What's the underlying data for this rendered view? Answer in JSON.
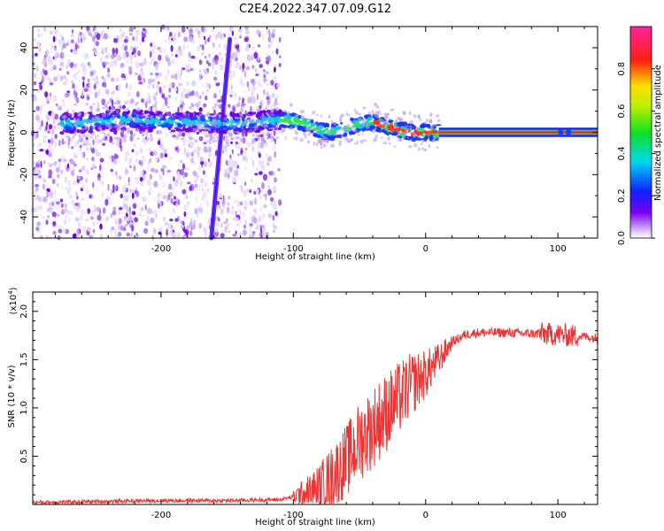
{
  "title": "C2E4.2022.347.07.09.G12",
  "chart_data": [
    {
      "type": "heatmap",
      "name": "spectrogram",
      "xlabel": "Height of straight line (km)",
      "ylabel": "Frequency (Hz)",
      "xlim": [
        -297,
        130
      ],
      "ylim": [
        -50,
        50
      ],
      "x_ticks": [
        -200,
        -100,
        0,
        100
      ],
      "x_tick_labels": [
        "-200",
        "-100",
        "0",
        "100"
      ],
      "y_ticks": [
        -40,
        -20,
        0,
        20,
        40
      ],
      "y_tick_labels": [
        "-40",
        "-20",
        "0",
        "20",
        "40"
      ],
      "colorbar": {
        "label": "Normalized spectral amplitude",
        "range": [
          0,
          1
        ],
        "ticks": [
          0.0,
          0.2,
          0.4,
          0.6,
          0.8
        ],
        "tick_labels": [
          "0.0",
          "0.2",
          "0.4",
          "0.6",
          "0.8"
        ]
      },
      "ridge": {
        "x": [
          -275,
          -250,
          -225,
          -200,
          -175,
          -150,
          -125,
          -110,
          -95,
          -80,
          -70,
          -60,
          -50,
          -40,
          -30,
          -20,
          -10,
          0,
          10,
          50,
          100,
          130
        ],
        "y": [
          4,
          5,
          6,
          5,
          5,
          4,
          5,
          6,
          5,
          1,
          0,
          2,
          4,
          5,
          3,
          1,
          0,
          0,
          0,
          0,
          0,
          0
        ]
      },
      "streak": {
        "x": [
          -162,
          -148
        ],
        "y": [
          -50,
          44
        ]
      },
      "noise_region_x": [
        -297,
        -110
      ]
    },
    {
      "type": "line",
      "name": "snr",
      "xlabel": "Height of straight line (km)",
      "ylabel": "SNR (10 * v/v)",
      "y_multiplier": "(x10^4)",
      "xlim": [
        -297,
        130
      ],
      "ylim": [
        0,
        2.2
      ],
      "x_ticks": [
        -200,
        -100,
        0,
        100
      ],
      "x_tick_labels": [
        "-200",
        "-100",
        "0",
        "100"
      ],
      "y_ticks": [
        0.5,
        1.0,
        1.5,
        2.0
      ],
      "y_tick_labels": [
        "0.5",
        "1.0",
        "1.5",
        "2.0"
      ],
      "series": [
        {
          "color": "#ee3333",
          "x": [
            -297,
            -250,
            -200,
            -150,
            -110,
            -100,
            -90,
            -80,
            -70,
            -60,
            -50,
            -40,
            -30,
            -20,
            -10,
            0,
            10,
            20,
            30,
            40,
            60,
            80,
            100,
            120,
            130
          ],
          "y": [
            0.02,
            0.03,
            0.04,
            0.04,
            0.05,
            0.08,
            0.12,
            0.18,
            0.3,
            0.45,
            0.65,
            0.8,
            0.95,
            1.1,
            1.25,
            1.35,
            1.5,
            1.68,
            1.76,
            1.78,
            1.78,
            1.77,
            1.76,
            1.74,
            1.72
          ]
        }
      ]
    }
  ]
}
